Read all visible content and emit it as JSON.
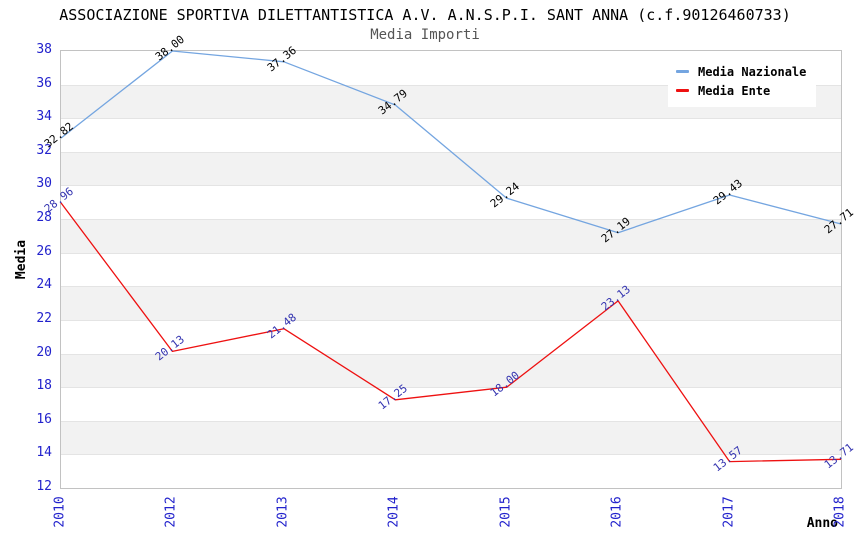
{
  "page": {
    "background": "#ffffff"
  },
  "chart_data": {
    "type": "line",
    "title": "ASSOCIAZIONE SPORTIVA DILETTANTISTICA A.V. A.N.S.P.I. SANT ANNA (c.f.90126460733)",
    "subtitle": "Media Importi",
    "xlabel": "Anno",
    "ylabel": "Media",
    "ylim": [
      12,
      38
    ],
    "ytick_step": 2,
    "yticks": [
      38,
      36,
      34,
      32,
      30,
      28,
      26,
      24,
      22,
      20,
      18,
      16,
      14,
      12
    ],
    "categories": [
      "2010",
      "2012",
      "2013",
      "2014",
      "2015",
      "2016",
      "2017",
      "2018"
    ],
    "series": [
      {
        "name": "Media Nazionale",
        "color": "#74a5e0",
        "label_color": "#000000",
        "values": [
          32.82,
          38.0,
          37.36,
          34.79,
          29.24,
          27.19,
          29.43,
          27.71
        ]
      },
      {
        "name": "Media Ente",
        "color": "#ee1111",
        "label_color": "#3333b0",
        "values": [
          28.96,
          20.13,
          21.48,
          17.25,
          18.0,
          23.13,
          13.57,
          13.71
        ]
      }
    ],
    "legend_position": "top-right",
    "grid": true,
    "band_colors": [
      "#ffffff",
      "#f2f2f2"
    ],
    "gridline_color": "#e4e4e4",
    "tick_color": "#2222cc",
    "value_label_decimals": 2
  }
}
